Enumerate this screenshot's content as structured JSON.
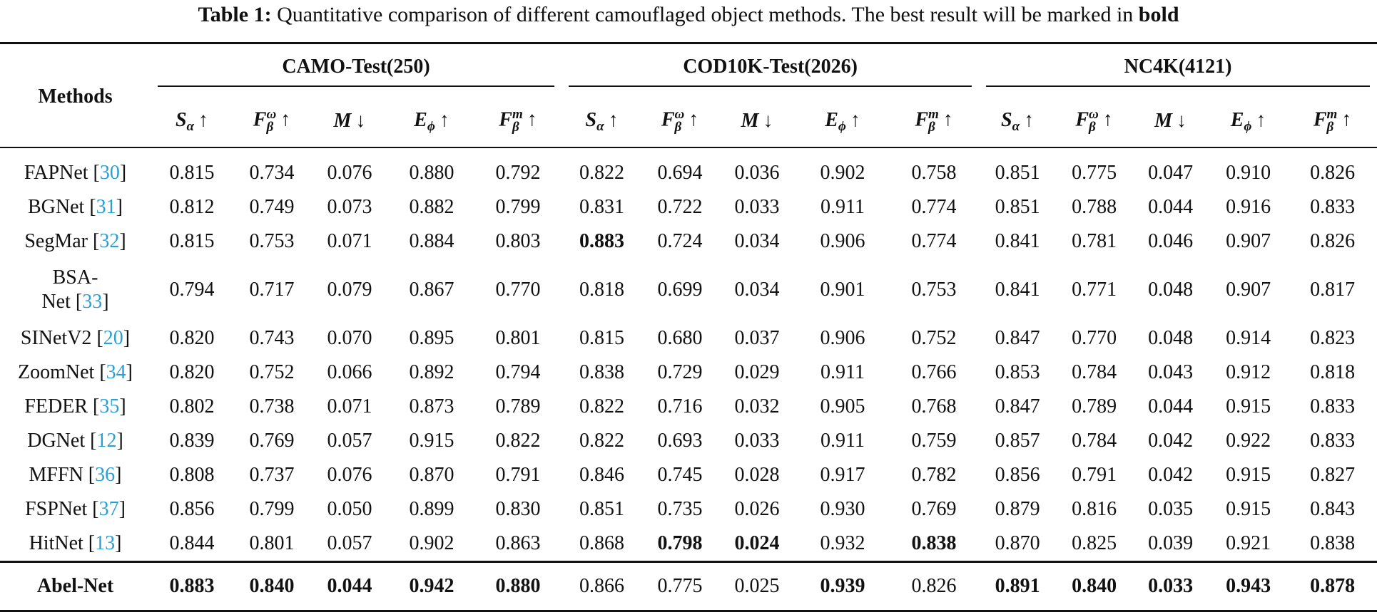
{
  "caption": {
    "label": "Table 1:",
    "text": " Quantitative comparison of different camouflaged object methods. The best result will be marked in ",
    "bold_word": "bold"
  },
  "header": {
    "methods": "Methods",
    "groups": [
      "CAMO-Test(250)",
      "COD10K-Test(2026)",
      "NC4K(4121)"
    ],
    "metrics": [
      {
        "base": "S",
        "sub": "α",
        "sup": "",
        "arrow": "↑"
      },
      {
        "base": "F",
        "sub": "β",
        "sup": "ω",
        "arrow": "↑"
      },
      {
        "base": "M",
        "sub": "",
        "sup": "",
        "arrow": "↓"
      },
      {
        "base": "E",
        "sub": "ϕ",
        "sup": "",
        "arrow": "↑"
      },
      {
        "base": "F",
        "sub": "β",
        "sup": "m",
        "arrow": "↑"
      }
    ]
  },
  "colors": {
    "citation": "#2a9fd6"
  },
  "rows": [
    {
      "method": "FAPNet",
      "ref": "30",
      "values": [
        "0.815",
        "0.734",
        "0.076",
        "0.880",
        "0.792",
        "0.822",
        "0.694",
        "0.036",
        "0.902",
        "0.758",
        "0.851",
        "0.775",
        "0.047",
        "0.910",
        "0.826"
      ],
      "bold": []
    },
    {
      "method": "BGNet",
      "ref": "31",
      "values": [
        "0.812",
        "0.749",
        "0.073",
        "0.882",
        "0.799",
        "0.831",
        "0.722",
        "0.033",
        "0.911",
        "0.774",
        "0.851",
        "0.788",
        "0.044",
        "0.916",
        "0.833"
      ],
      "bold": []
    },
    {
      "method": "SegMar",
      "ref": "32",
      "values": [
        "0.815",
        "0.753",
        "0.071",
        "0.884",
        "0.803",
        "0.883",
        "0.724",
        "0.034",
        "0.906",
        "0.774",
        "0.841",
        "0.781",
        "0.046",
        "0.907",
        "0.826"
      ],
      "bold": [
        5
      ]
    },
    {
      "method": "BSA-Net",
      "ref": "33",
      "values": [
        "0.794",
        "0.717",
        "0.079",
        "0.867",
        "0.770",
        "0.818",
        "0.699",
        "0.034",
        "0.901",
        "0.753",
        "0.841",
        "0.771",
        "0.048",
        "0.907",
        "0.817"
      ],
      "bold": [],
      "wrap": true,
      "method_line1": "BSA-",
      "method_line2": "Net"
    },
    {
      "method": "SINetV2",
      "ref": "20",
      "values": [
        "0.820",
        "0.743",
        "0.070",
        "0.895",
        "0.801",
        "0.815",
        "0.680",
        "0.037",
        "0.906",
        "0.752",
        "0.847",
        "0.770",
        "0.048",
        "0.914",
        "0.823"
      ],
      "bold": []
    },
    {
      "method": "ZoomNet",
      "ref": "34",
      "values": [
        "0.820",
        "0.752",
        "0.066",
        "0.892",
        "0.794",
        "0.838",
        "0.729",
        "0.029",
        "0.911",
        "0.766",
        "0.853",
        "0.784",
        "0.043",
        "0.912",
        "0.818"
      ],
      "bold": []
    },
    {
      "method": "FEDER",
      "ref": "35",
      "values": [
        "0.802",
        "0.738",
        "0.071",
        "0.873",
        "0.789",
        "0.822",
        "0.716",
        "0.032",
        "0.905",
        "0.768",
        "0.847",
        "0.789",
        "0.044",
        "0.915",
        "0.833"
      ],
      "bold": []
    },
    {
      "method": "DGNet",
      "ref": "12",
      "values": [
        "0.839",
        "0.769",
        "0.057",
        "0.915",
        "0.822",
        "0.822",
        "0.693",
        "0.033",
        "0.911",
        "0.759",
        "0.857",
        "0.784",
        "0.042",
        "0.922",
        "0.833"
      ],
      "bold": []
    },
    {
      "method": "MFFN",
      "ref": "36",
      "values": [
        "0.808",
        "0.737",
        "0.076",
        "0.870",
        "0.791",
        "0.846",
        "0.745",
        "0.028",
        "0.917",
        "0.782",
        "0.856",
        "0.791",
        "0.042",
        "0.915",
        "0.827"
      ],
      "bold": []
    },
    {
      "method": "FSPNet",
      "ref": "37",
      "values": [
        "0.856",
        "0.799",
        "0.050",
        "0.899",
        "0.830",
        "0.851",
        "0.735",
        "0.026",
        "0.930",
        "0.769",
        "0.879",
        "0.816",
        "0.035",
        "0.915",
        "0.843"
      ],
      "bold": []
    },
    {
      "method": "HitNet",
      "ref": "13",
      "values": [
        "0.844",
        "0.801",
        "0.057",
        "0.902",
        "0.863",
        "0.868",
        "0.798",
        "0.024",
        "0.932",
        "0.838",
        "0.870",
        "0.825",
        "0.039",
        "0.921",
        "0.838"
      ],
      "bold": [
        6,
        7,
        9
      ]
    }
  ],
  "proposed": {
    "method": "Abel-Net",
    "values": [
      "0.883",
      "0.840",
      "0.044",
      "0.942",
      "0.880",
      "0.866",
      "0.775",
      "0.025",
      "0.939",
      "0.826",
      "0.891",
      "0.840",
      "0.033",
      "0.943",
      "0.878"
    ],
    "bold": [
      0,
      1,
      2,
      3,
      4,
      8,
      10,
      11,
      12,
      13,
      14
    ]
  }
}
